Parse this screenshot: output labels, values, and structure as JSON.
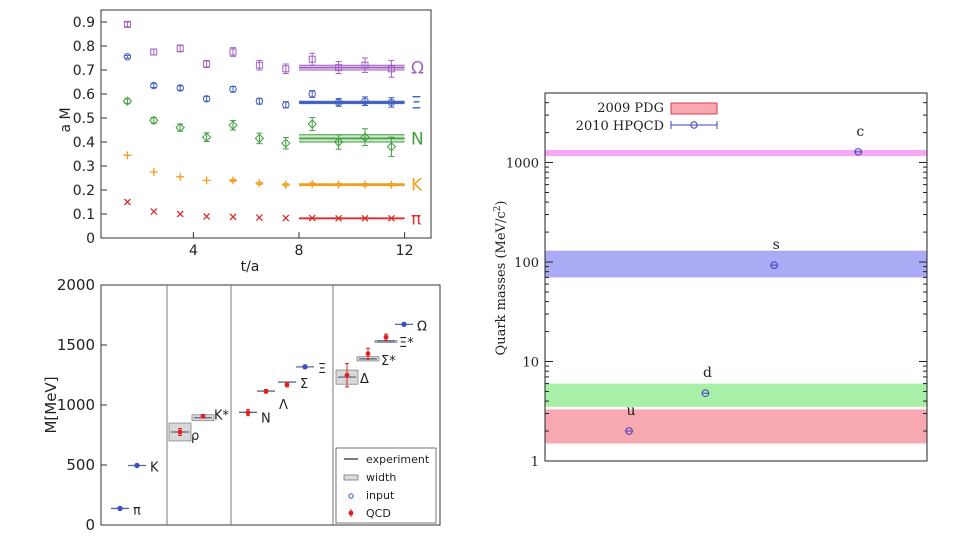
{
  "colors": {
    "omega": "#a25fc4",
    "xi": "#3f5fbf",
    "n": "#3f9f3f",
    "k": "#f0a020",
    "pi": "#d83030",
    "exp_line": "#5a6a8a",
    "qcd": "#e02020",
    "pdg_red": "#f7a8b0",
    "pdg_green": "#a8f0a8",
    "pdg_blue": "#aaaaf5",
    "pdg_pink": "#f5a8f5",
    "hpqcd": "#4040c0"
  },
  "chart_data": [
    {
      "id": "effective-mass",
      "type": "scatter",
      "title": "",
      "xlabel": "t/a",
      "ylabel": "a M",
      "xlim": [
        0.5,
        13
      ],
      "ylim": [
        0,
        0.95
      ],
      "xticks": [
        4,
        8,
        12
      ],
      "yticks": [
        0,
        0.1,
        0.2,
        0.3,
        0.4,
        0.5,
        0.6,
        0.7,
        0.8,
        0.9
      ],
      "series": [
        {
          "name": "Ω",
          "marker": "square",
          "color": "#a25fc4",
          "x": [
            1.5,
            2.5,
            3.5,
            4.5,
            5.5,
            6.5,
            7.5,
            8.5,
            9.5,
            10.5,
            11.5
          ],
          "y": [
            0.89,
            0.775,
            0.79,
            0.725,
            0.775,
            0.72,
            0.705,
            0.745,
            0.71,
            0.72,
            0.705
          ],
          "err": [
            0.01,
            0.012,
            0.014,
            0.015,
            0.018,
            0.02,
            0.02,
            0.025,
            0.025,
            0.03,
            0.035
          ],
          "fit": {
            "x": [
              8,
              12
            ],
            "center": 0.71,
            "band": [
              0.7,
              0.72
            ]
          }
        },
        {
          "name": "Ξ",
          "marker": "circle",
          "color": "#3f5fbf",
          "x": [
            1.5,
            2.5,
            3.5,
            4.5,
            5.5,
            6.5,
            7.5,
            8.5,
            9.5,
            10.5,
            11.5
          ],
          "y": [
            0.755,
            0.635,
            0.625,
            0.58,
            0.62,
            0.57,
            0.555,
            0.6,
            0.565,
            0.57,
            0.565
          ],
          "err": [
            0.006,
            0.008,
            0.009,
            0.01,
            0.011,
            0.012,
            0.013,
            0.014,
            0.016,
            0.018,
            0.02
          ],
          "fit": {
            "x": [
              8,
              12
            ],
            "center": 0.565,
            "band": [
              0.56,
              0.57
            ]
          }
        },
        {
          "name": "N",
          "marker": "diamond",
          "color": "#3f9f3f",
          "x": [
            1.5,
            2.5,
            3.5,
            4.5,
            5.5,
            6.5,
            7.5,
            8.5,
            9.5,
            10.5,
            11.5
          ],
          "y": [
            0.57,
            0.49,
            0.46,
            0.42,
            0.47,
            0.415,
            0.395,
            0.475,
            0.4,
            0.42,
            0.38
          ],
          "err": [
            0.01,
            0.012,
            0.015,
            0.018,
            0.02,
            0.022,
            0.024,
            0.027,
            0.03,
            0.035,
            0.04
          ],
          "fit": {
            "x": [
              8,
              12
            ],
            "center": 0.415,
            "band": [
              0.4,
              0.43
            ]
          }
        },
        {
          "name": "K",
          "marker": "plus",
          "color": "#f0a020",
          "x": [
            1.5,
            2.5,
            3.5,
            4.5,
            5.5,
            6.5,
            7.5,
            8.5,
            9.5,
            10.5,
            11.5
          ],
          "y": [
            0.345,
            0.275,
            0.255,
            0.24,
            0.24,
            0.228,
            0.222,
            0.225,
            0.223,
            0.222,
            0.222
          ],
          "err": [
            0.003,
            0.004,
            0.004,
            0.004,
            0.005,
            0.005,
            0.005,
            0.005,
            0.005,
            0.005,
            0.005
          ],
          "fit": {
            "x": [
              8,
              12
            ],
            "center": 0.222,
            "band": [
              0.218,
              0.226
            ]
          }
        },
        {
          "name": "π",
          "marker": "cross",
          "color": "#d83030",
          "x": [
            1.5,
            2.5,
            3.5,
            4.5,
            5.5,
            6.5,
            7.5,
            8.5,
            9.5,
            10.5,
            11.5
          ],
          "y": [
            0.15,
            0.11,
            0.1,
            0.09,
            0.088,
            0.085,
            0.083,
            0.083,
            0.082,
            0.082,
            0.082
          ],
          "err": [
            0.002,
            0.002,
            0.002,
            0.002,
            0.002,
            0.002,
            0.002,
            0.002,
            0.002,
            0.002,
            0.002
          ],
          "fit": {
            "x": [
              8,
              12
            ],
            "center": 0.082,
            "band": [
              0.08,
              0.084
            ]
          }
        }
      ]
    },
    {
      "id": "hadron-spectrum",
      "type": "scatter",
      "title": "",
      "ylabel": "M[MeV]",
      "ylim": [
        0,
        2000
      ],
      "yticks": [
        0,
        500,
        1000,
        1500,
        2000
      ],
      "legend": {
        "placement": "bottom-right",
        "entries": [
          "experiment",
          "width",
          "input",
          "QCD"
        ]
      },
      "groups": [
        {
          "particles": [
            {
              "label": "π",
              "exp": 138,
              "width": 0,
              "input": true
            }
          ]
        },
        {
          "particles": [
            {
              "label": "K",
              "exp": 496,
              "width": 0,
              "input": true
            }
          ]
        },
        {
          "particles": [
            {
              "label": "ρ",
              "exp": 775,
              "width": 149,
              "qcd": 775,
              "qcd_err": 29
            },
            {
              "label": "K*",
              "exp": 894,
              "width": 50,
              "qcd": 906,
              "qcd_err": 14
            }
          ]
        },
        {
          "particles": [
            {
              "label": "N",
              "exp": 939,
              "width": 0,
              "qcd": 936,
              "qcd_err": 25
            },
            {
              "label": "Λ",
              "exp": 1116,
              "width": 0,
              "qcd": 1114,
              "qcd_err": 15
            },
            {
              "label": "Σ",
              "exp": 1191,
              "width": 0,
              "qcd": 1169,
              "qcd_err": 18
            },
            {
              "label": "Ξ",
              "exp": 1318,
              "width": 0,
              "input": true
            }
          ]
        },
        {
          "particles": [
            {
              "label": "Δ",
              "exp": 1232,
              "width": 118,
              "qcd": 1248,
              "qcd_err": 97
            },
            {
              "label": "Σ*",
              "exp": 1385,
              "width": 36,
              "qcd": 1427,
              "qcd_err": 46
            },
            {
              "label": "Ξ*",
              "exp": 1533,
              "width": 9,
              "qcd": 1565,
              "qcd_err": 26
            },
            {
              "label": "Ω",
              "exp": 1672,
              "width": 0,
              "input": true
            }
          ]
        }
      ]
    },
    {
      "id": "quark-masses",
      "type": "scatter",
      "title": "",
      "ylabel": "Quark masses (MeV/c²)",
      "ylabel_main": "Quark masses (MeV/c",
      "ylabel_sup": "2",
      "ylabel_end": ")",
      "yscale": "log",
      "ylim": [
        1,
        5000
      ],
      "yticks": [
        1,
        10,
        100,
        1000
      ],
      "ytick_labels": [
        "1",
        "10",
        "100",
        "1000"
      ],
      "legend": {
        "placement": "top-left",
        "entries": [
          "2009 PDG",
          "2010 HPQCD"
        ]
      },
      "bands": [
        {
          "name": "u",
          "low": 1.5,
          "high": 3.3,
          "color": "#f7a8b0"
        },
        {
          "name": "d",
          "low": 3.5,
          "high": 6.0,
          "color": "#a8f0a8"
        },
        {
          "name": "s",
          "low": 70,
          "high": 130,
          "color": "#aaaaf5"
        },
        {
          "name": "c",
          "low": 1160,
          "high": 1340,
          "color": "#f5a8f5"
        }
      ],
      "points": [
        {
          "label": "u",
          "x": 0.22,
          "y": 2.0
        },
        {
          "label": "d",
          "x": 0.42,
          "y": 4.8
        },
        {
          "label": "s",
          "x": 0.6,
          "y": 93
        },
        {
          "label": "c",
          "x": 0.82,
          "y": 1280
        }
      ]
    }
  ]
}
